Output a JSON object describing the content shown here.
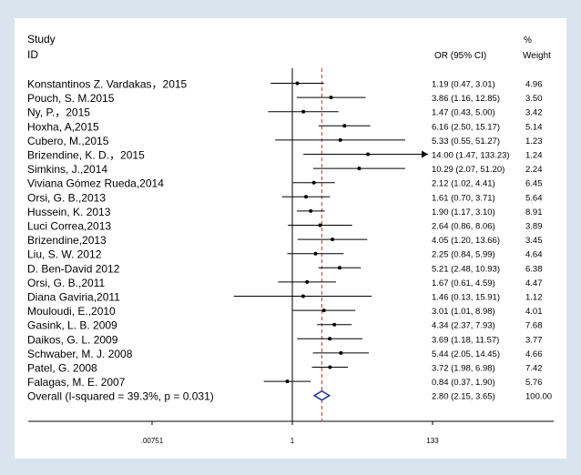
{
  "colors": {
    "frame": "#d9e4ef",
    "panel": "#ffffff",
    "ink": "#000000",
    "overall_line": "#c0392b",
    "diamond": "#1f3a93"
  },
  "chart_data": {
    "type": "forest",
    "headers": {
      "study_line1": "Study",
      "study_line2": "ID",
      "or_ci": "OR (95% CI)",
      "weight_line1": "%",
      "weight_line2": "Weight"
    },
    "axis": {
      "scale": "log",
      "ticks": [
        {
          "value": 0.00751,
          "label": ".00751"
        },
        {
          "value": 1,
          "label": "1"
        },
        {
          "value": 133,
          "label": "133"
        }
      ],
      "null_value": 1
    },
    "studies": [
      {
        "name": "Konstantinos Z. Vardakas，2015",
        "or": 1.19,
        "lo": 0.47,
        "hi": 3.01,
        "or_ci_text": "1.19 (0.47, 3.01)",
        "weight": "4.96"
      },
      {
        "name": "Pouch, S. M.2015",
        "or": 3.86,
        "lo": 1.16,
        "hi": 12.85,
        "or_ci_text": "3.86 (1.16, 12.85)",
        "weight": "3.50"
      },
      {
        "name": "Ny, P.，2015",
        "or": 1.47,
        "lo": 0.43,
        "hi": 5.0,
        "or_ci_text": "1.47 (0.43, 5.00)",
        "weight": "3.42"
      },
      {
        "name": "Hoxha, A,2015",
        "or": 6.16,
        "lo": 2.5,
        "hi": 15.17,
        "or_ci_text": "6.16 (2.50, 15.17)",
        "weight": "5.14"
      },
      {
        "name": "Cubero, M.,2015",
        "or": 5.33,
        "lo": 0.55,
        "hi": 51.27,
        "or_ci_text": "5.33 (0.55, 51.27)",
        "weight": "1.23"
      },
      {
        "name": "Brizendine, K. D.，2015",
        "or": 14.0,
        "lo": 1.47,
        "hi": 133.23,
        "or_ci_text": "14.00 (1.47, 133.23)",
        "weight": "1.24",
        "arrow": true
      },
      {
        "name": "Simkins, J.,2014",
        "or": 10.29,
        "lo": 2.07,
        "hi": 51.2,
        "or_ci_text": "10.29 (2.07, 51.20)",
        "weight": "2.24"
      },
      {
        "name": "Viviana Gómez Rueda,2014",
        "or": 2.12,
        "lo": 1.02,
        "hi": 4.41,
        "or_ci_text": "2.12 (1.02, 4.41)",
        "weight": "6.45"
      },
      {
        "name": "Orsi, G. B.,2013",
        "or": 1.61,
        "lo": 0.7,
        "hi": 3.71,
        "or_ci_text": "1.61 (0.70, 3.71)",
        "weight": "5.64"
      },
      {
        "name": "Hussein, K. 2013",
        "or": 1.9,
        "lo": 1.17,
        "hi": 3.1,
        "or_ci_text": "1.90 (1.17, 3.10)",
        "weight": "8.91"
      },
      {
        "name": "Luci Correa,2013",
        "or": 2.64,
        "lo": 0.86,
        "hi": 8.06,
        "or_ci_text": "2.64 (0.86, 8.06)",
        "weight": "3.89"
      },
      {
        "name": "Brizendine,2013",
        "or": 4.05,
        "lo": 1.2,
        "hi": 13.66,
        "or_ci_text": "4.05 (1.20, 13.66)",
        "weight": "3.45"
      },
      {
        "name": "Liu, S. W. 2012",
        "or": 2.25,
        "lo": 0.84,
        "hi": 5.99,
        "or_ci_text": "2.25 (0.84, 5.99)",
        "weight": "4.64"
      },
      {
        "name": "D. Ben-David 2012",
        "or": 5.21,
        "lo": 2.48,
        "hi": 10.93,
        "or_ci_text": "5.21 (2.48, 10.93)",
        "weight": "6.38"
      },
      {
        "name": "Orsi, G. B.,2011",
        "or": 1.67,
        "lo": 0.61,
        "hi": 4.59,
        "or_ci_text": "1.67 (0.61, 4.59)",
        "weight": "4.47"
      },
      {
        "name": "Diana Gaviria,2011",
        "or": 1.46,
        "lo": 0.13,
        "hi": 15.91,
        "or_ci_text": "1.46 (0.13, 15.91)",
        "weight": "1.12"
      },
      {
        "name": "Mouloudi, E.,2010",
        "or": 3.01,
        "lo": 1.01,
        "hi": 8.98,
        "or_ci_text": "3.01 (1.01, 8.98)",
        "weight": "4.01"
      },
      {
        "name": "Gasink, L. B. 2009",
        "or": 4.34,
        "lo": 2.37,
        "hi": 7.93,
        "or_ci_text": "4.34 (2.37, 7.93)",
        "weight": "7.68"
      },
      {
        "name": "Daikos, G. L. 2009",
        "or": 3.69,
        "lo": 1.18,
        "hi": 11.57,
        "or_ci_text": "3.69 (1.18, 11.57)",
        "weight": "3.77"
      },
      {
        "name": "Schwaber, M. J. 2008",
        "or": 5.44,
        "lo": 2.05,
        "hi": 14.45,
        "or_ci_text": "5.44 (2.05, 14.45)",
        "weight": "4.66"
      },
      {
        "name": "Patel, G. 2008",
        "or": 3.72,
        "lo": 1.98,
        "hi": 6.98,
        "or_ci_text": "3.72 (1.98, 6.98)",
        "weight": "7.42"
      },
      {
        "name": "Falagas, M. E. 2007",
        "or": 0.84,
        "lo": 0.37,
        "hi": 1.9,
        "or_ci_text": "0.84 (0.37, 1.90)",
        "weight": "5.76"
      }
    ],
    "overall": {
      "name": "Overall  (I-squared = 39.3%, p = 0.031)",
      "or": 2.8,
      "lo": 2.15,
      "hi": 3.65,
      "or_ci_text": "2.80 (2.15, 3.65)",
      "weight": "100.00"
    }
  }
}
